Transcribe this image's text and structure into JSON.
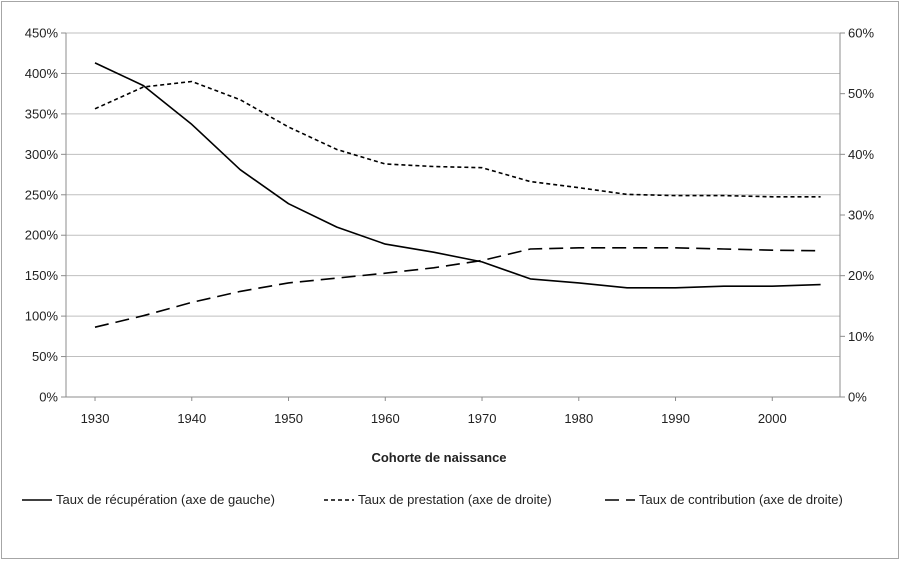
{
  "chart_data": {
    "type": "line",
    "title": "",
    "xlabel": "Cohorte de naissance",
    "ylabel_left": "",
    "ylabel_right": "",
    "x": [
      1930,
      1935,
      1940,
      1945,
      1950,
      1955,
      1960,
      1965,
      1970,
      1975,
      1980,
      1985,
      1990,
      1995,
      2000,
      2005
    ],
    "xticks": [
      "1930",
      "1940",
      "1950",
      "1960",
      "1970",
      "1980",
      "1990",
      "2000"
    ],
    "yticks_left": [
      "0%",
      "50%",
      "100%",
      "150%",
      "200%",
      "250%",
      "300%",
      "350%",
      "400%",
      "450%"
    ],
    "yticks_right": [
      "0%",
      "10%",
      "20%",
      "30%",
      "40%",
      "50%",
      "60%"
    ],
    "ylim_left": [
      0,
      450
    ],
    "ylim_right": [
      0,
      60
    ],
    "xlim": [
      1927,
      2007
    ],
    "grid": true,
    "legend_position": "bottom",
    "series": [
      {
        "name": "Taux de récupération (axe de gauche)",
        "axis": "left",
        "dash": "solid",
        "values": [
          413,
          385,
          337,
          281,
          239,
          210,
          189,
          179,
          167,
          146,
          141,
          135,
          135,
          137,
          137,
          139
        ]
      },
      {
        "name": "Taux de prestation (axe de droite)",
        "axis": "right",
        "dash": "short-dash",
        "values": [
          47.5,
          51.1,
          52.0,
          49.0,
          44.5,
          40.8,
          38.4,
          38.0,
          37.8,
          35.5,
          34.5,
          33.4,
          33.2,
          33.2,
          33.0,
          33.0
        ]
      },
      {
        "name": "Taux de contribution (axe de droite)",
        "axis": "right",
        "dash": "long-dash",
        "values": [
          11.5,
          13.4,
          15.6,
          17.4,
          18.8,
          19.6,
          20.4,
          21.3,
          22.5,
          24.4,
          24.6,
          24.6,
          24.6,
          24.4,
          24.2,
          24.1
        ]
      }
    ],
    "colors": {
      "line": "#000000",
      "grid": "#bfbfbf",
      "axis": "#8c8c8c",
      "text": "#222222"
    }
  }
}
